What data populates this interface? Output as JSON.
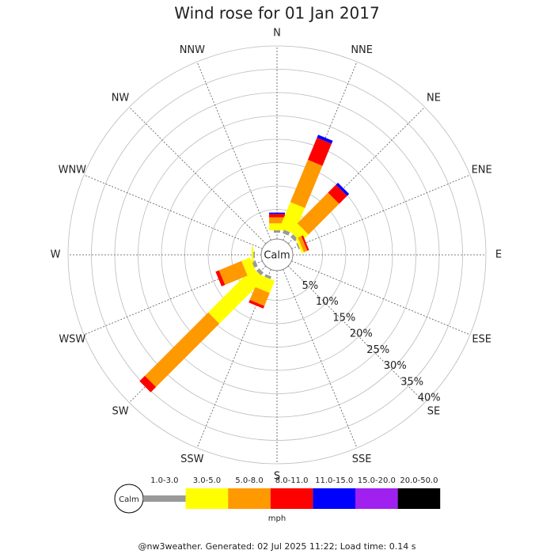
{
  "chart_data": {
    "type": "windrose",
    "title": "Wind rose for 01 Jan 2017",
    "categories": [
      "N",
      "NNE",
      "NE",
      "ENE",
      "E",
      "ESE",
      "SE",
      "SSE",
      "S",
      "SSW",
      "SW",
      "WSW",
      "W",
      "WNW",
      "NW",
      "NNW"
    ],
    "calm_label": "Calm",
    "rlim": [
      0,
      40
    ],
    "rticks": [
      {
        "value": 5,
        "label": "5%"
      },
      {
        "value": 10,
        "label": "10%"
      },
      {
        "value": 15,
        "label": "15%"
      },
      {
        "value": 20,
        "label": "20%"
      },
      {
        "value": 25,
        "label": "25%"
      },
      {
        "value": 30,
        "label": "30%"
      },
      {
        "value": 35,
        "label": "35%"
      },
      {
        "value": 40,
        "label": "40%"
      }
    ],
    "series": [
      {
        "name": "1.0-3.0",
        "color": "#999999",
        "values": [
          0.5,
          0.8,
          0.8,
          0.3,
          0,
          0,
          0,
          0,
          0,
          0.6,
          0.8,
          0.8,
          0.3,
          0,
          0,
          0
        ]
      },
      {
        "name": "3.0-5.0",
        "color": "#ffff00",
        "values": [
          1.5,
          6.0,
          2.3,
          0.5,
          0,
          0,
          0,
          0,
          0,
          2.8,
          13.6,
          2.0,
          0.4,
          0,
          0,
          0
        ]
      },
      {
        "name": "5.0-8.0",
        "color": "#ff9900",
        "values": [
          1.3,
          9.8,
          9.3,
          0.8,
          0,
          0,
          0,
          0,
          0,
          3.0,
          19.2,
          5.2,
          0,
          0,
          0,
          0
        ]
      },
      {
        "name": "8.0-11.0",
        "color": "#ff0000",
        "values": [
          0.7,
          5.1,
          2.4,
          0.4,
          0,
          0,
          0,
          0,
          0,
          0.6,
          1.6,
          0.8,
          0,
          0,
          0,
          0
        ]
      },
      {
        "name": "11.0-15.0",
        "color": "#0000ff",
        "values": [
          0.3,
          0.7,
          0.6,
          0,
          0,
          0,
          0,
          0,
          0,
          0,
          0,
          0,
          0,
          0,
          0,
          0
        ]
      },
      {
        "name": "15.0-20.0",
        "color": "#a020f0",
        "values": [
          0,
          0,
          0,
          0,
          0,
          0,
          0,
          0,
          0,
          0,
          0,
          0,
          0,
          0,
          0,
          0
        ]
      },
      {
        "name": "20.0-50.0",
        "color": "#000000",
        "values": [
          0,
          0,
          0,
          0,
          0,
          0,
          0,
          0,
          0,
          0,
          0,
          0,
          0,
          0,
          0,
          0
        ]
      }
    ],
    "legend_unit": "mph",
    "footer": "@nw3weather. Generated: 02 Jul 2025 11:22; Load time: 0.14 s"
  }
}
